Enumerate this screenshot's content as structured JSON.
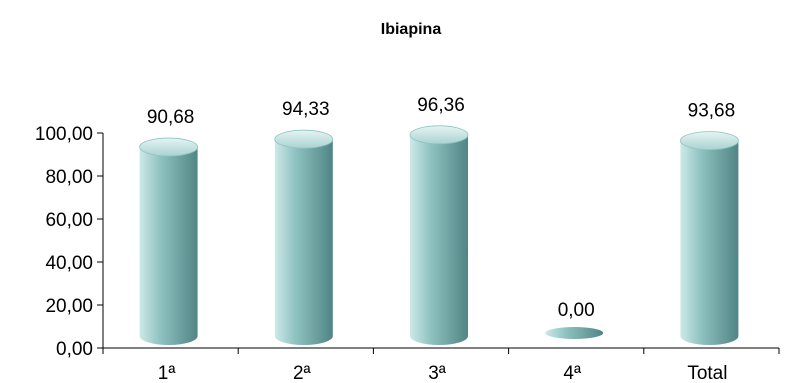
{
  "chart_data": {
    "type": "bar",
    "title": "Ibiapina",
    "categories": [
      "1ª",
      "2ª",
      "3ª",
      "4ª",
      "Total"
    ],
    "values": [
      90.68,
      94.33,
      96.36,
      0.0,
      93.68
    ],
    "value_labels": [
      "90,68",
      "94,33",
      "96,36",
      "0,00",
      "93,68"
    ],
    "y_ticks": [
      "0,00",
      "20,00",
      "40,00",
      "60,00",
      "80,00",
      "100,00"
    ],
    "ylim": [
      0,
      100
    ],
    "xlabel": "",
    "ylabel": "",
    "grid": false,
    "legend": "none",
    "colors": {
      "bar_light": "#cde9e7",
      "bar_mid": "#8fc3c2",
      "bar_dark": "#4f8584",
      "top_light": "#e6f4f3",
      "top_dark": "#a9d3d1",
      "axis": "#000000"
    }
  }
}
